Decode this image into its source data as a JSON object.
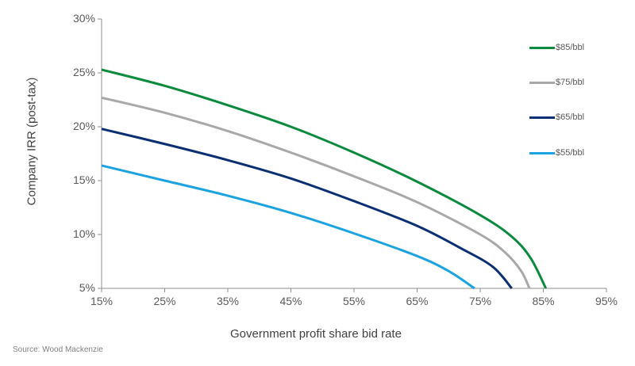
{
  "chart_data": {
    "type": "line",
    "title": "",
    "xlabel": "Government profit share bid rate",
    "ylabel": "Company IRR (post-tax)",
    "xlim": [
      15,
      95
    ],
    "ylim": [
      5,
      30
    ],
    "x_ticks": [
      "15%",
      "25%",
      "35%",
      "45%",
      "55%",
      "65%",
      "75%",
      "85%",
      "95%"
    ],
    "y_ticks": [
      "30%",
      "25%",
      "20%",
      "15%",
      "10%",
      "5%"
    ],
    "grid": false,
    "legend_position": "right",
    "series": [
      {
        "name": "$85/bbl",
        "color": "#0a8a3c",
        "x": [
          15,
          25,
          35,
          45,
          55,
          65,
          75,
          80,
          83,
          85.4
        ],
        "y": [
          25.3,
          23.8,
          22.0,
          20.0,
          17.6,
          14.9,
          11.8,
          9.8,
          7.8,
          5.0
        ]
      },
      {
        "name": "$75/bbl",
        "color": "#a8a8a8",
        "x": [
          15,
          25,
          35,
          45,
          55,
          65,
          75,
          79,
          81.5,
          82.8
        ],
        "y": [
          22.7,
          21.3,
          19.6,
          17.6,
          15.4,
          13.0,
          10.0,
          8.3,
          6.6,
          5.0
        ]
      },
      {
        "name": "$65/bbl",
        "color": "#0b2f73",
        "x": [
          15,
          25,
          35,
          45,
          55,
          65,
          72,
          77,
          80
        ],
        "y": [
          19.8,
          18.4,
          16.9,
          15.2,
          13.1,
          10.8,
          8.7,
          7.0,
          5.0
        ]
      },
      {
        "name": "$55/bbl",
        "color": "#1aa3e0",
        "x": [
          15,
          25,
          35,
          45,
          55,
          65,
          70,
          74.1
        ],
        "y": [
          16.4,
          15.0,
          13.6,
          12.0,
          10.1,
          8.0,
          6.6,
          5.0
        ]
      }
    ],
    "source": "Source: Wood Mackenzie"
  },
  "legend": [
    {
      "label": "$85/bbl",
      "color": "#0a8a3c"
    },
    {
      "label": "$75/bbl",
      "color": "#a8a8a8"
    },
    {
      "label": "$65/bbl",
      "color": "#0b2f73"
    },
    {
      "label": "$55/bbl",
      "color": "#1aa3e0"
    }
  ],
  "axis_color": "#8c8c8c"
}
